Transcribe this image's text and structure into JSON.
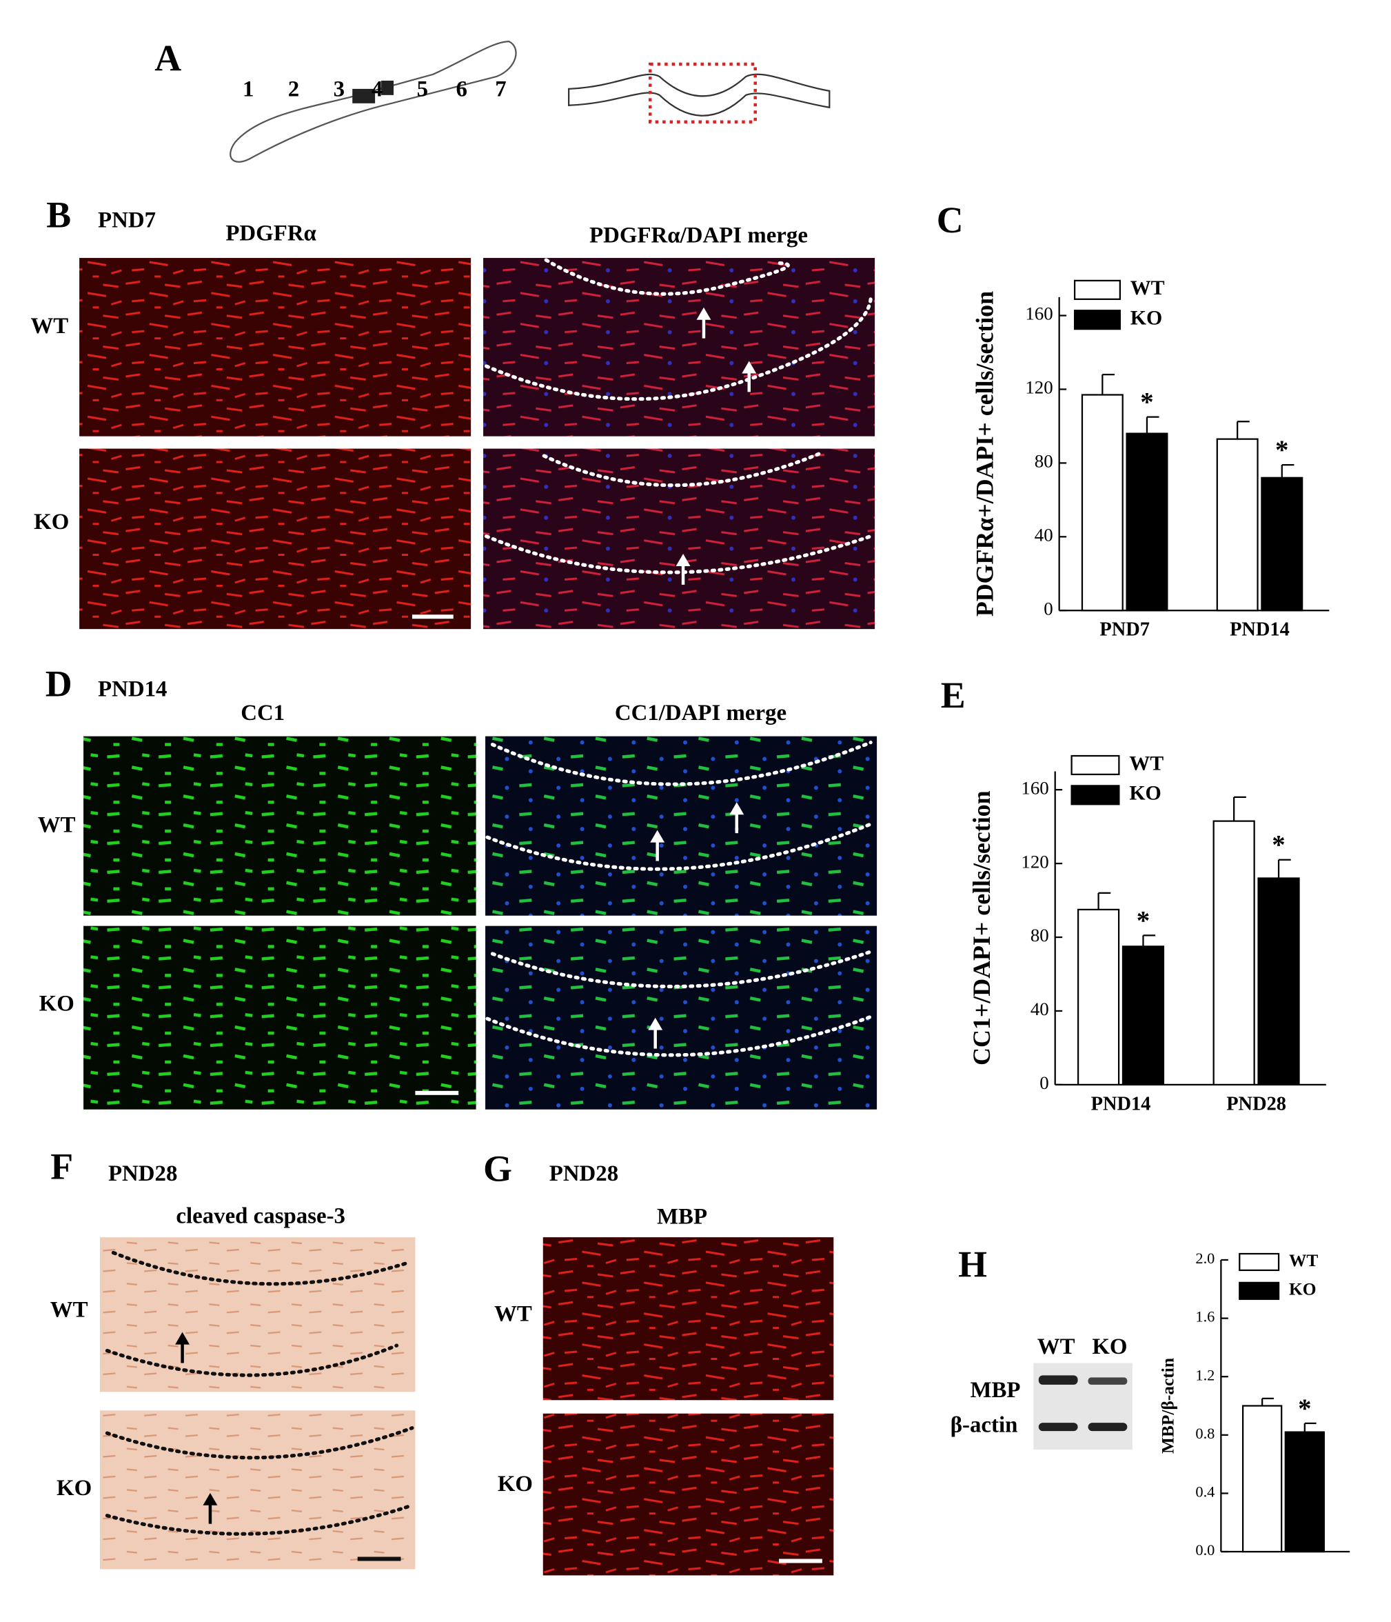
{
  "chart_data": [
    {
      "type": "bar",
      "panel": "C",
      "y_label": "PDGFRα+/DAPI+ cells/section",
      "categories": [
        "PND7",
        "PND14"
      ],
      "series": [
        {
          "name": "WT",
          "color": "#ffffff",
          "values": [
            117,
            93
          ],
          "errors": [
            11,
            9.5
          ]
        },
        {
          "name": "KO",
          "color": "#000000",
          "values": [
            96,
            72
          ],
          "errors": [
            9,
            7
          ]
        }
      ],
      "annotations": [
        "*",
        "*"
      ],
      "ylim": [
        0,
        170
      ],
      "yticks": [
        0,
        40,
        80,
        120,
        160
      ]
    },
    {
      "type": "bar",
      "panel": "E",
      "y_label": "CC1+/DAPI+ cells/section",
      "categories": [
        "PND14",
        "PND28"
      ],
      "series": [
        {
          "name": "WT",
          "color": "#ffffff",
          "values": [
            95,
            143
          ],
          "errors": [
            9,
            13
          ]
        },
        {
          "name": "KO",
          "color": "#000000",
          "values": [
            75,
            112
          ],
          "errors": [
            6,
            10
          ]
        }
      ],
      "annotations": [
        "*",
        "*"
      ],
      "ylim": [
        0,
        170
      ],
      "yticks": [
        0,
        40,
        80,
        120,
        160
      ]
    },
    {
      "type": "bar",
      "panel": "H",
      "y_label": "MBP/β-actin",
      "series": [
        {
          "name": "WT",
          "color": "#ffffff",
          "values": [
            1.0
          ],
          "errors": [
            0.05
          ]
        },
        {
          "name": "KO",
          "color": "#000000",
          "values": [
            0.82
          ],
          "errors": [
            0.06
          ]
        }
      ],
      "annotations": [
        "*"
      ],
      "ylim": [
        0,
        2.0
      ],
      "yticks": [
        {
          "value": 0,
          "label": "0.0"
        },
        0.4,
        0.8,
        1.2,
        1.6,
        {
          "value": 2.0,
          "label": "2.0"
        }
      ]
    }
  ],
  "figure": {
    "panel_A": {
      "letter": "A",
      "segments": [
        "1",
        "2",
        "3",
        "4",
        "5",
        "6",
        "7"
      ]
    },
    "panel_B": {
      "letter": "B",
      "age": "PND7",
      "columns": [
        "PDGFRα",
        "PDGFRα/DAPI merge"
      ],
      "rows": [
        "WT",
        "KO"
      ]
    },
    "panel_D": {
      "letter": "D",
      "age": "PND14",
      "columns": [
        "CC1",
        "CC1/DAPI merge"
      ],
      "rows": [
        "WT",
        "KO"
      ]
    },
    "panel_F": {
      "letter": "F",
      "age": "PND28",
      "column": "cleaved caspase-3",
      "rows": [
        "WT",
        "KO"
      ]
    },
    "panel_G": {
      "letter": "G",
      "age": "PND28",
      "column": "MBP",
      "rows": [
        "WT",
        "KO"
      ]
    },
    "panel_H_blot": {
      "lanes": [
        "WT",
        "KO"
      ],
      "bands": [
        "MBP",
        "β-actin"
      ]
    }
  }
}
